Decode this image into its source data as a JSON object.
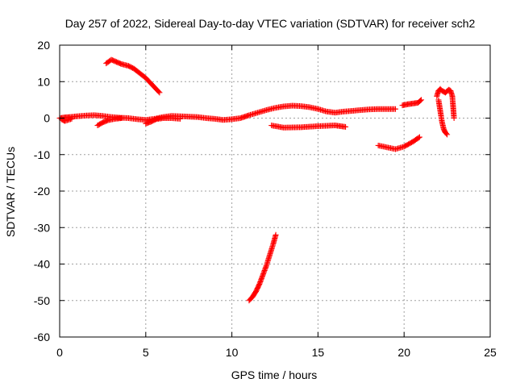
{
  "chart_data": {
    "type": "scatter",
    "title": "Day 257 of 2022, Sidereal Day-to-day VTEC variation (SDTVAR) for receiver sch2",
    "xlabel": "GPS time / hours",
    "ylabel": "SDTVAR / TECUs",
    "xlim": [
      0,
      25
    ],
    "ylim": [
      -60,
      20
    ],
    "xticks": [
      0,
      5,
      10,
      15,
      20,
      25
    ],
    "yticks": [
      -60,
      -50,
      -40,
      -30,
      -20,
      -10,
      0,
      10,
      20
    ],
    "grid": true,
    "marker": "+",
    "color": "#ff0000",
    "series": [
      {
        "segments": [
          {
            "x": [
              0.0,
              0.3,
              0.6,
              1.0,
              1.5,
              2.0,
              2.5,
              3.0,
              3.5,
              4.0,
              4.5,
              5.0,
              5.5,
              6.0,
              6.5,
              7.0,
              7.5,
              8.0,
              8.5,
              9.0,
              9.5,
              10.0,
              10.5,
              11.0,
              11.5,
              12.0,
              12.5,
              13.0,
              13.5,
              14.0,
              14.5,
              15.0,
              15.5,
              16.0,
              16.5,
              17.0,
              17.5,
              18.0,
              18.5,
              19.0,
              19.5
            ],
            "y": [
              0.0,
              0.2,
              0.3,
              0.5,
              0.7,
              0.8,
              0.6,
              0.3,
              0.1,
              0.0,
              -0.3,
              -0.5,
              -0.2,
              0.3,
              0.6,
              0.5,
              0.4,
              0.3,
              0.0,
              -0.2,
              -0.5,
              -0.3,
              0.0,
              0.8,
              1.5,
              2.2,
              2.8,
              3.2,
              3.4,
              3.3,
              3.0,
              2.5,
              1.8,
              1.5,
              1.8,
              2.0,
              2.2,
              2.4,
              2.5,
              2.5,
              2.5
            ]
          },
          {
            "x": [
              0.1,
              0.3,
              0.5,
              0.7
            ],
            "y": [
              -0.3,
              -0.8,
              -0.5,
              -0.2
            ]
          },
          {
            "x": [
              2.2,
              2.5,
              2.8,
              3.2,
              3.6
            ],
            "y": [
              -2.0,
              -1.2,
              -0.6,
              -0.2,
              0.0
            ]
          },
          {
            "x": [
              5.0,
              5.3,
              5.6,
              6.0,
              6.5,
              7.0
            ],
            "y": [
              -1.5,
              -1.0,
              -0.3,
              0.0,
              0.0,
              -0.2
            ]
          },
          {
            "x": [
              2.7,
              3.0,
              3.3,
              3.6,
              4.0,
              4.3,
              4.6,
              5.0,
              5.4,
              5.8
            ],
            "y": [
              15.0,
              16.0,
              15.4,
              14.8,
              14.3,
              13.6,
              12.5,
              11.0,
              9.0,
              7.0
            ]
          },
          {
            "x": [
              12.3,
              13.0,
              14.0,
              15.0,
              16.0,
              16.6
            ],
            "y": [
              -2.0,
              -2.6,
              -2.5,
              -2.2,
              -2.0,
              -2.4
            ]
          },
          {
            "x": [
              11.0,
              11.2,
              11.4,
              11.6,
              11.8,
              12.0,
              12.2,
              12.4,
              12.55
            ],
            "y": [
              -50.0,
              -49.0,
              -47.5,
              -45.5,
              -43.0,
              -40.5,
              -37.5,
              -34.5,
              -32.0
            ]
          },
          {
            "x": [
              18.5,
              19.0,
              19.5,
              20.0,
              20.5,
              20.9
            ],
            "y": [
              -7.5,
              -8.0,
              -8.5,
              -7.8,
              -6.5,
              -5.2
            ]
          },
          {
            "x": [
              19.9,
              20.2,
              20.5,
              20.8,
              21.0
            ],
            "y": [
              3.5,
              3.8,
              4.0,
              4.2,
              5.0
            ]
          },
          {
            "x": [
              21.9,
              22.0,
              22.1,
              22.2,
              22.4,
              22.6,
              22.7,
              22.8,
              22.85,
              22.9
            ],
            "y": [
              6.0,
              7.5,
              8.0,
              7.5,
              7.0,
              7.8,
              7.5,
              6.0,
              3.0,
              0.0
            ]
          },
          {
            "x": [
              22.0,
              22.1,
              22.2,
              22.3,
              22.4,
              22.5
            ],
            "y": [
              5.0,
              2.0,
              -1.0,
              -3.0,
              -4.0,
              -4.5
            ]
          }
        ]
      }
    ]
  }
}
